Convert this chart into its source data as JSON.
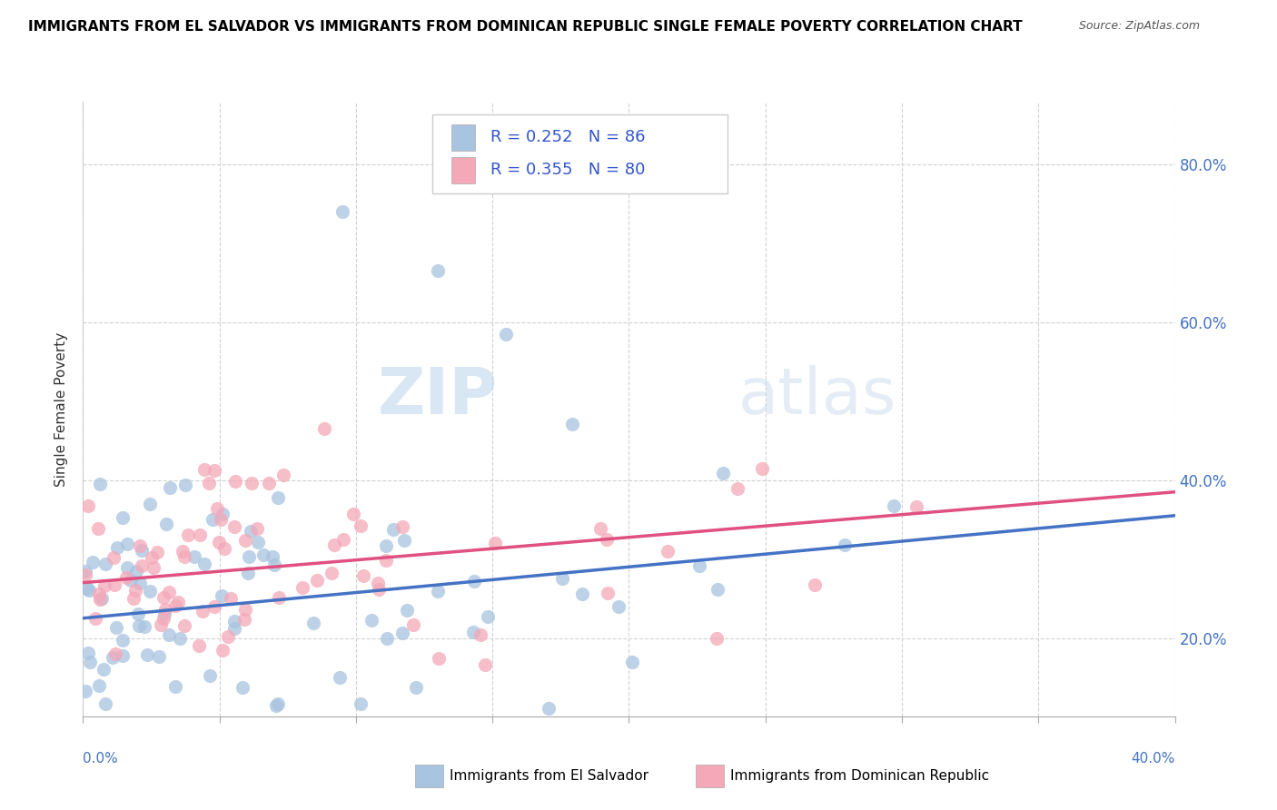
{
  "title": "IMMIGRANTS FROM EL SALVADOR VS IMMIGRANTS FROM DOMINICAN REPUBLIC SINGLE FEMALE POVERTY CORRELATION CHART",
  "source": "Source: ZipAtlas.com",
  "ylabel": "Single Female Poverty",
  "right_ytick_vals": [
    0.2,
    0.4,
    0.6,
    0.8
  ],
  "xlim": [
    0.0,
    0.4
  ],
  "ylim": [
    0.1,
    0.88
  ],
  "el_salvador_R": 0.252,
  "el_salvador_N": 86,
  "dominican_R": 0.355,
  "dominican_N": 80,
  "color_el_salvador": "#a8c4e0",
  "color_dominican": "#f4a8b8",
  "color_trendline_el_salvador": "#4472c4",
  "color_trendline_dominican": "#e05080",
  "legend_text_color": "#3355cc",
  "watermark_zip": "ZIP",
  "watermark_atlas": "atlas",
  "trendline_es_start": 0.225,
  "trendline_es_end": 0.355,
  "trendline_dr_start": 0.27,
  "trendline_dr_end": 0.385
}
